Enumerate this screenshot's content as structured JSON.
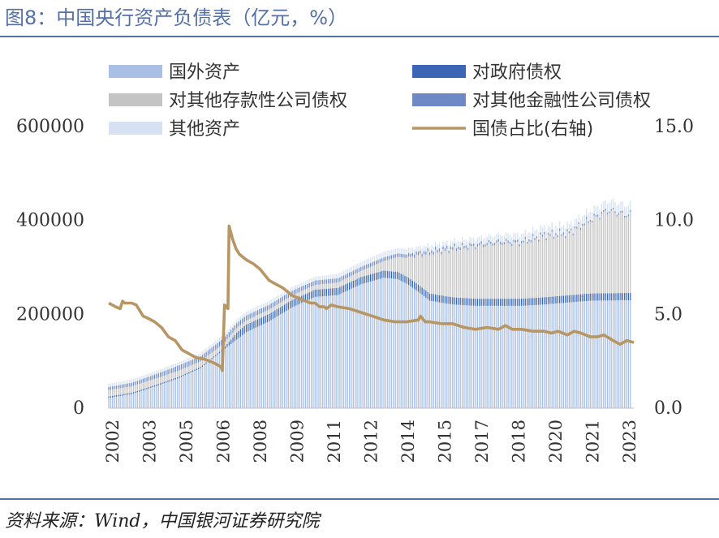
{
  "title": "图8：中国央行资产负债表（亿元，%）",
  "source": "资料来源：Wind，中国银河证券研究院",
  "chart_data": {
    "type": "bar",
    "stacked": true,
    "x_tick_labels": [
      "2002",
      "2003",
      "2005",
      "2006",
      "2008",
      "2009",
      "2011",
      "2012",
      "2014",
      "2015",
      "2017",
      "2018",
      "2020",
      "2021",
      "2023"
    ],
    "x_range": [
      2002.0,
      2024.9
    ],
    "y_left": {
      "ticks": [
        "0",
        "200000",
        "400000",
        "600000"
      ],
      "range": [
        0,
        600000
      ]
    },
    "y_right": {
      "ticks": [
        "0.0",
        "5.0",
        "10.0",
        "15.0"
      ],
      "range": [
        0,
        15
      ]
    },
    "legend_position": "top",
    "legend": [
      {
        "name": "国外资产",
        "color": "#a9bfe6",
        "kind": "bar"
      },
      {
        "name": "对政府债权",
        "color": "#3a66b5",
        "kind": "bar"
      },
      {
        "name": "对其他存款性公司债权",
        "color": "#c4c4c4",
        "kind": "bar"
      },
      {
        "name": "对其他金融性公司债权",
        "color": "#6f89c6",
        "kind": "bar"
      },
      {
        "name": "其他资产",
        "color": "#d6e1f4",
        "kind": "bar"
      },
      {
        "name": "国债占比(右轴)",
        "color": "#b79664",
        "kind": "line"
      }
    ],
    "series": [
      {
        "name": "国外资产",
        "axis": "left",
        "x": [
          2002.0,
          2003.0,
          2004.0,
          2005.0,
          2006.0,
          2007.0,
          2008.0,
          2009.0,
          2010.0,
          2011.0,
          2012.0,
          2013.0,
          2014.0,
          2014.6,
          2015.0,
          2015.5,
          2016.0,
          2017.0,
          2018.0,
          2019.0,
          2020.0,
          2021.0,
          2022.0,
          2023.0,
          2024.5
        ],
        "values": [
          22000,
          30000,
          46000,
          63000,
          85000,
          124000,
          162000,
          185000,
          215000,
          237000,
          241000,
          264000,
          278000,
          275000,
          265000,
          248000,
          229000,
          221000,
          218000,
          218000,
          218000,
          221000,
          225000,
          229000,
          230000
        ]
      },
      {
        "name": "对政府债权",
        "axis": "left",
        "x": [
          2002.0,
          2005.0,
          2007.0,
          2007.6,
          2008.0,
          2011.0,
          2014.0,
          2016.0,
          2018.0,
          2020.0,
          2022.0,
          2024.5
        ],
        "values": [
          2900,
          2900,
          2900,
          15000,
          16000,
          15500,
          15300,
          15300,
          15200,
          15300,
          15400,
          15500
        ]
      },
      {
        "name": "对其他存款性公司债权",
        "axis": "left",
        "x": [
          2002.0,
          2005.0,
          2008.0,
          2011.0,
          2013.0,
          2014.0,
          2015.0,
          2016.0,
          2017.0,
          2018.0,
          2019.0,
          2020.0,
          2021.0,
          2022.0,
          2023.0,
          2023.8,
          2024.5
        ],
        "values": [
          14000,
          13000,
          9000,
          10000,
          13000,
          20000,
          40000,
          85000,
          102000,
          111000,
          118000,
          118000,
          130000,
          130000,
          155000,
          175000,
          165000
        ]
      },
      {
        "name": "对其他金融性公司债权",
        "axis": "left",
        "x": [
          2002.0,
          2005.0,
          2007.0,
          2010.0,
          2014.0,
          2016.0,
          2018.0,
          2020.0,
          2024.5
        ],
        "values": [
          6000,
          11000,
          11000,
          10000,
          8000,
          6500,
          5000,
          4500,
          3500
        ]
      },
      {
        "name": "其他资产",
        "axis": "left",
        "x": [
          2002.0,
          2005.0,
          2008.0,
          2011.0,
          2014.0,
          2016.0,
          2018.0,
          2020.0,
          2022.0,
          2024.5
        ],
        "values": [
          7000,
          7000,
          8000,
          8000,
          12000,
          11000,
          13000,
          15000,
          16000,
          20000
        ]
      },
      {
        "name": "国债占比(右轴)",
        "axis": "right",
        "x": [
          2002.0,
          2002.3,
          2002.5,
          2002.6,
          2002.7,
          2003.0,
          2003.2,
          2003.5,
          2003.7,
          2004.0,
          2004.3,
          2004.6,
          2004.9,
          2005.2,
          2005.5,
          2005.8,
          2006.2,
          2006.6,
          2006.9,
          2006.95,
          2007.05,
          2007.2,
          2007.25,
          2007.4,
          2007.55,
          2007.7,
          2008.0,
          2008.3,
          2008.6,
          2009.0,
          2009.3,
          2009.6,
          2010.0,
          2010.4,
          2010.8,
          2011.0,
          2011.2,
          2011.4,
          2011.5,
          2011.7,
          2012.0,
          2012.5,
          2013.0,
          2013.5,
          2014.0,
          2014.5,
          2015.0,
          2015.5,
          2015.6,
          2015.8,
          2016.0,
          2016.5,
          2017.0,
          2017.5,
          2018.0,
          2018.5,
          2019.0,
          2019.3,
          2019.6,
          2020.0,
          2020.5,
          2021.0,
          2021.3,
          2021.6,
          2022.0,
          2022.3,
          2022.6,
          2023.0,
          2023.3,
          2023.6,
          2024.0,
          2024.3,
          2024.6,
          2024.9
        ],
        "values": [
          5.6,
          5.4,
          5.3,
          5.7,
          5.6,
          5.6,
          5.5,
          4.9,
          4.8,
          4.6,
          4.3,
          3.8,
          3.6,
          3.1,
          2.9,
          2.7,
          2.6,
          2.4,
          2.2,
          2.0,
          5.5,
          5.3,
          9.7,
          9.0,
          8.5,
          8.2,
          7.9,
          7.7,
          7.4,
          6.8,
          6.6,
          6.4,
          6.0,
          5.8,
          5.6,
          5.6,
          5.4,
          5.4,
          5.3,
          5.5,
          5.4,
          5.3,
          5.1,
          4.9,
          4.7,
          4.6,
          4.6,
          4.7,
          4.9,
          4.6,
          4.6,
          4.5,
          4.5,
          4.3,
          4.2,
          4.3,
          4.2,
          4.4,
          4.2,
          4.2,
          4.1,
          4.1,
          4.0,
          4.1,
          3.9,
          4.1,
          4.0,
          3.8,
          3.8,
          3.9,
          3.6,
          3.4,
          3.6,
          3.5
        ]
      }
    ]
  }
}
